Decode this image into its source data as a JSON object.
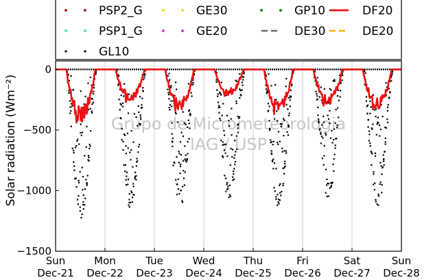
{
  "chart_data": {
    "type": "scatter",
    "ylabel": "Solar radiation (Wm⁻²)",
    "ylim": [
      -1500,
      70
    ],
    "xlim": [
      "2016-12-21",
      "2016-12-28"
    ],
    "yticks": [
      0,
      -500,
      -1000,
      -1500
    ],
    "ytick_labels": [
      "0",
      "−500",
      "−1000",
      "−1500"
    ],
    "xticks": [
      {
        "day": "Sun",
        "date": "Dec-21"
      },
      {
        "day": "Mon",
        "date": "Dec-22"
      },
      {
        "day": "Tue",
        "date": "Dec-23"
      },
      {
        "day": "Wed",
        "date": "Dec-24"
      },
      {
        "day": "Thu",
        "date": "Dec-25"
      },
      {
        "day": "Fri",
        "date": "Dec-26"
      },
      {
        "day": "Sat",
        "date": "Dec-27"
      },
      {
        "day": "Sun",
        "date": "Dec-28"
      }
    ],
    "watermark": [
      "Grupo de Micrometeorologia",
      "IAG / USP"
    ],
    "grid": "vertical",
    "legend": {
      "placement": "top",
      "entries": [
        {
          "name": "PSP2_G",
          "style": "dots",
          "color": "#a02c2c"
        },
        {
          "name": "GE30",
          "style": "dots",
          "color": "#f2e60a"
        },
        {
          "name": "GP10",
          "style": "dots",
          "color": "#1a8a1a"
        },
        {
          "name": "DF20",
          "style": "line",
          "color": "#ee1111"
        },
        {
          "name": "PSP1_G",
          "style": "dots",
          "color": "#66dcc8"
        },
        {
          "name": "GE20",
          "style": "dots",
          "color": "#e633e6"
        },
        {
          "name": "DE30",
          "style": "dash",
          "color": "#666666"
        },
        {
          "name": "DE20",
          "style": "dash",
          "color": "#ffb000"
        },
        {
          "name": "GL10",
          "style": "dots",
          "color": "#000000"
        }
      ]
    },
    "series": [
      {
        "name": "GL10",
        "color": "#000000",
        "daily_minimum": [
          {
            "date": "2016-12-21",
            "value": -1280
          },
          {
            "date": "2016-12-22",
            "value": -1180
          },
          {
            "date": "2016-12-23",
            "value": -1140
          },
          {
            "date": "2016-12-24",
            "value": -1100
          },
          {
            "date": "2016-12-25",
            "value": -1190
          },
          {
            "date": "2016-12-26",
            "value": -1070
          },
          {
            "date": "2016-12-27",
            "value": -1130
          }
        ]
      },
      {
        "name": "DF20",
        "color": "#ee1111",
        "daily_minimum": [
          {
            "date": "2016-12-21",
            "value": -440
          },
          {
            "date": "2016-12-22",
            "value": -270
          },
          {
            "date": "2016-12-23",
            "value": -340
          },
          {
            "date": "2016-12-24",
            "value": -220
          },
          {
            "date": "2016-12-25",
            "value": -370
          },
          {
            "date": "2016-12-26",
            "value": -300
          },
          {
            "date": "2016-12-27",
            "value": -330
          }
        ]
      }
    ]
  }
}
